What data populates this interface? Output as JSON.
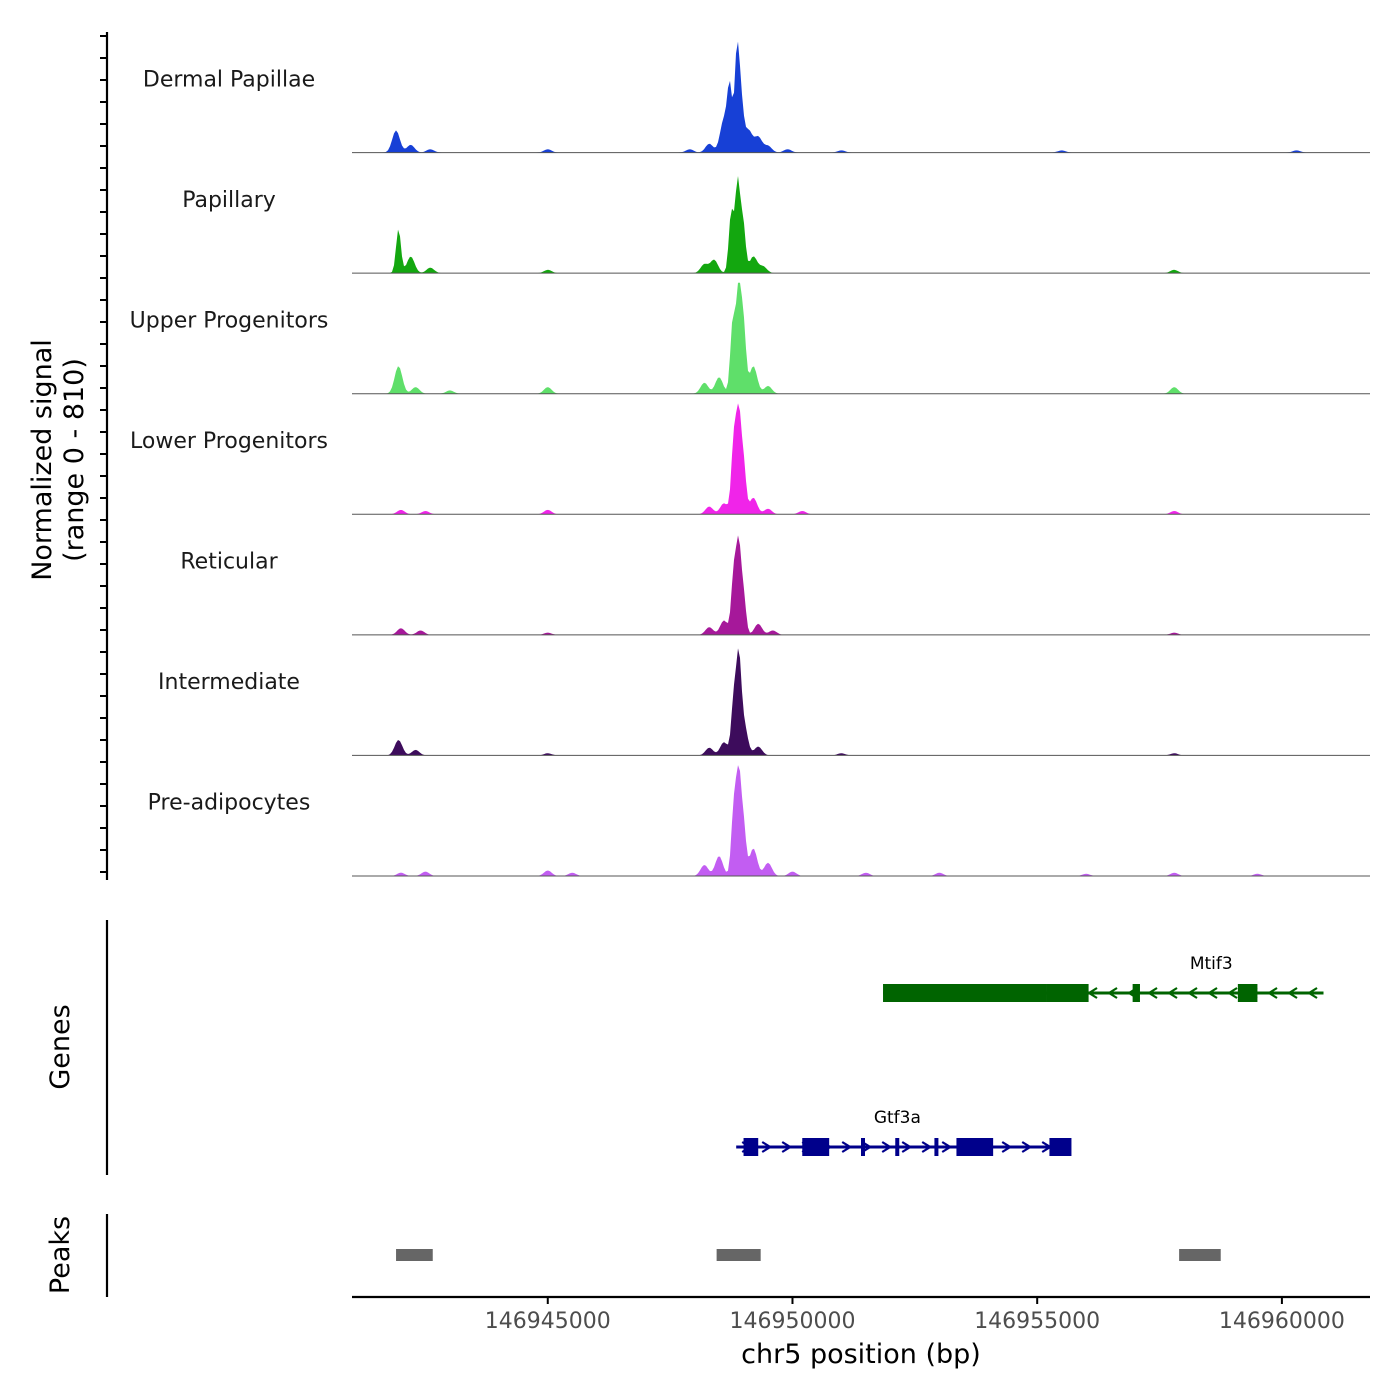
{
  "chart_data": {
    "type": "area",
    "title": "",
    "ylabel_line1": "Normalized signal",
    "ylabel_line2": "(range 0 - 810)",
    "yrange": [
      0,
      810
    ],
    "xlabel": "chr5 position (bp)",
    "xlim": [
      146941000,
      146961800
    ],
    "xticks": [
      146945000,
      146950000,
      146955000,
      146960000
    ],
    "xtick_labels": [
      "146945000",
      "146950000",
      "146955000",
      "146960000"
    ],
    "tracks": [
      {
        "name": "Dermal Papillae",
        "color": "#1740d6",
        "peaks": [
          [
            146941900,
            0.2
          ],
          [
            146942200,
            0.07
          ],
          [
            146942600,
            0.03
          ],
          [
            146945000,
            0.03
          ],
          [
            146947900,
            0.03
          ],
          [
            146948300,
            0.08
          ],
          [
            146948600,
            0.3
          ],
          [
            146948720,
            0.55
          ],
          [
            146948870,
            0.95
          ],
          [
            146948960,
            0.35
          ],
          [
            146949100,
            0.2
          ],
          [
            146949300,
            0.14
          ],
          [
            146949500,
            0.06
          ],
          [
            146949900,
            0.03
          ],
          [
            146951000,
            0.02
          ],
          [
            146955500,
            0.02
          ],
          [
            146960300,
            0.02
          ]
        ]
      },
      {
        "name": "Papillary",
        "color": "#13a70f",
        "peaks": [
          [
            146941950,
            0.4
          ],
          [
            146942200,
            0.15
          ],
          [
            146942600,
            0.05
          ],
          [
            146945000,
            0.03
          ],
          [
            146948200,
            0.08
          ],
          [
            146948400,
            0.12
          ],
          [
            146948750,
            0.55
          ],
          [
            146948880,
            0.82
          ],
          [
            146948990,
            0.45
          ],
          [
            146949200,
            0.15
          ],
          [
            146949400,
            0.06
          ],
          [
            146957800,
            0.03
          ]
        ]
      },
      {
        "name": "Upper Progenitors",
        "color": "#5fdf6a",
        "peaks": [
          [
            146941950,
            0.25
          ],
          [
            146942300,
            0.06
          ],
          [
            146943000,
            0.03
          ],
          [
            146945000,
            0.06
          ],
          [
            146948200,
            0.1
          ],
          [
            146948500,
            0.15
          ],
          [
            146948780,
            0.65
          ],
          [
            146948900,
            0.98
          ],
          [
            146949000,
            0.6
          ],
          [
            146949200,
            0.25
          ],
          [
            146949500,
            0.07
          ],
          [
            146957800,
            0.06
          ]
        ]
      },
      {
        "name": "Lower Progenitors",
        "color": "#f024e9",
        "peaks": [
          [
            146942000,
            0.04
          ],
          [
            146942500,
            0.03
          ],
          [
            146945000,
            0.04
          ],
          [
            146948300,
            0.07
          ],
          [
            146948600,
            0.1
          ],
          [
            146948800,
            0.65
          ],
          [
            146948900,
            0.88
          ],
          [
            146949000,
            0.45
          ],
          [
            146949200,
            0.15
          ],
          [
            146949500,
            0.05
          ],
          [
            146950200,
            0.03
          ],
          [
            146957800,
            0.03
          ]
        ]
      },
      {
        "name": "Reticular",
        "color": "#a6189a",
        "peaks": [
          [
            146942000,
            0.06
          ],
          [
            146942400,
            0.04
          ],
          [
            146945000,
            0.02
          ],
          [
            146948300,
            0.07
          ],
          [
            146948600,
            0.13
          ],
          [
            146948800,
            0.55
          ],
          [
            146948900,
            0.78
          ],
          [
            146949000,
            0.35
          ],
          [
            146949300,
            0.1
          ],
          [
            146949600,
            0.04
          ],
          [
            146957800,
            0.02
          ]
        ]
      },
      {
        "name": "Intermediate",
        "color": "#3d0c5c",
        "peaks": [
          [
            146941950,
            0.14
          ],
          [
            146942300,
            0.05
          ],
          [
            146945000,
            0.02
          ],
          [
            146948300,
            0.07
          ],
          [
            146948600,
            0.12
          ],
          [
            146948800,
            0.5
          ],
          [
            146948900,
            0.78
          ],
          [
            146949000,
            0.3
          ],
          [
            146949300,
            0.08
          ],
          [
            146951000,
            0.02
          ],
          [
            146957800,
            0.02
          ]
        ]
      },
      {
        "name": "Pre-adipocytes",
        "color": "#c25df2",
        "peaks": [
          [
            146942000,
            0.03
          ],
          [
            146942500,
            0.04
          ],
          [
            146945000,
            0.05
          ],
          [
            146945500,
            0.03
          ],
          [
            146948200,
            0.1
          ],
          [
            146948500,
            0.18
          ],
          [
            146948800,
            0.6
          ],
          [
            146948900,
            0.9
          ],
          [
            146949000,
            0.45
          ],
          [
            146949200,
            0.25
          ],
          [
            146949500,
            0.12
          ],
          [
            146950000,
            0.04
          ],
          [
            146951500,
            0.03
          ],
          [
            146953000,
            0.03
          ],
          [
            146956000,
            0.02
          ],
          [
            146957800,
            0.03
          ],
          [
            146959500,
            0.02
          ]
        ]
      }
    ],
    "genes_label": "Genes",
    "genes": [
      {
        "name": "Mtif3",
        "color": "#006400",
        "strand": "-",
        "start": 146951850,
        "end": 146960850,
        "exons": [
          [
            146951850,
            146955200
          ],
          [
            146955200,
            146956050
          ],
          [
            146956950,
            146957100
          ],
          [
            146959100,
            146959500
          ]
        ]
      },
      {
        "name": "Gtf3a",
        "color": "#00008b",
        "strand": "+",
        "start": 146948850,
        "end": 146955600,
        "exons": [
          [
            146949000,
            146949300
          ],
          [
            146950200,
            146950750
          ],
          [
            146951400,
            146951450
          ],
          [
            146952100,
            146952150
          ],
          [
            146952900,
            146952950
          ],
          [
            146953350,
            146954100
          ],
          [
            146955250,
            146955700
          ]
        ]
      }
    ],
    "peaks_label": "Peaks",
    "peak_regions": [
      [
        146941900,
        146942650
      ],
      [
        146948450,
        146949350
      ],
      [
        146957900,
        146958750
      ]
    ]
  }
}
